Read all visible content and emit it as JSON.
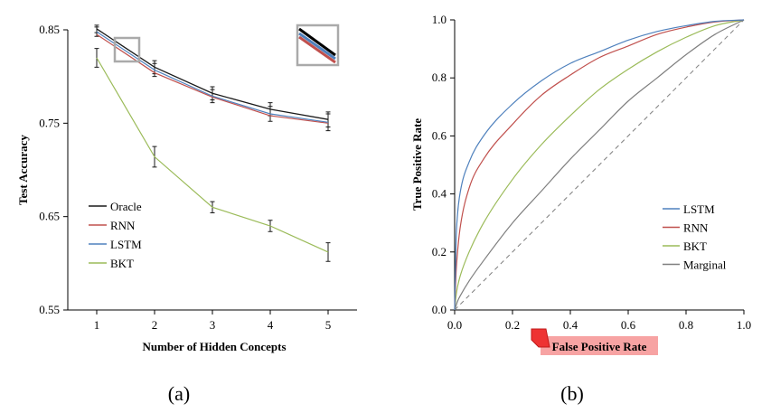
{
  "colors": {
    "oracle": "#1a1a1a",
    "rnn": "#c0504d",
    "lstm": "#4f81bd",
    "bkt": "#9bbb59",
    "marginal": "#7f7f7f",
    "chance": "#808080",
    "annotation": "#f08080"
  },
  "chart_data": [
    {
      "type": "line",
      "panel_label": "(a)",
      "xlabel": "Number of Hidden Concepts",
      "ylabel": "Test Accuracy",
      "x": [
        1,
        2,
        3,
        4,
        5
      ],
      "xticks": [
        "1",
        "2",
        "3",
        "4",
        "5"
      ],
      "xlim": [
        0.5,
        5.5
      ],
      "ylim": [
        0.55,
        0.85
      ],
      "yticks": [
        "0.55",
        "0.65",
        "0.75",
        "0.85"
      ],
      "legend_position": "bottom-left",
      "inset": "zoom box near x=1.5",
      "series": [
        {
          "name": "Oracle",
          "key": "oracle",
          "values": [
            0.851,
            0.81,
            0.782,
            0.765,
            0.754
          ],
          "err": [
            0.004,
            0.007,
            0.007,
            0.007,
            0.008
          ]
        },
        {
          "name": "RNN",
          "key": "rnn",
          "values": [
            0.845,
            0.804,
            0.778,
            0.758,
            0.75
          ],
          "err": [
            0,
            0,
            0,
            0,
            0
          ]
        },
        {
          "name": "LSTM",
          "key": "lstm",
          "values": [
            0.848,
            0.807,
            0.779,
            0.76,
            0.751
          ],
          "err": [
            0.005,
            0.007,
            0.007,
            0.008,
            0.009
          ]
        },
        {
          "name": "BKT",
          "key": "bkt",
          "values": [
            0.82,
            0.714,
            0.66,
            0.64,
            0.612
          ],
          "err": [
            0.01,
            0.011,
            0.006,
            0.006,
            0.01
          ]
        }
      ]
    },
    {
      "type": "line",
      "panel_label": "(b)",
      "xlabel": "False Positive Rate",
      "ylabel": "True Positive Rate",
      "xlim": [
        0,
        1
      ],
      "ylim": [
        0,
        1
      ],
      "xticks": [
        "0.0",
        "0.2",
        "0.4",
        "0.6",
        "0.8",
        "1.0"
      ],
      "yticks": [
        "0.0",
        "0.2",
        "0.4",
        "0.6",
        "0.8",
        "1.0"
      ],
      "legend_position": "bottom-right",
      "x": [
        0,
        0.005,
        0.01,
        0.02,
        0.05,
        0.1,
        0.2,
        0.3,
        0.4,
        0.5,
        0.6,
        0.7,
        0.8,
        0.9,
        1.0
      ],
      "series": [
        {
          "name": "LSTM",
          "key": "lstm",
          "values": [
            0,
            0.24,
            0.33,
            0.41,
            0.51,
            0.6,
            0.71,
            0.79,
            0.85,
            0.89,
            0.93,
            0.96,
            0.98,
            0.995,
            1.0
          ]
        },
        {
          "name": "RNN",
          "key": "rnn",
          "values": [
            0,
            0.13,
            0.2,
            0.29,
            0.42,
            0.52,
            0.64,
            0.74,
            0.81,
            0.87,
            0.91,
            0.95,
            0.975,
            0.993,
            1.0
          ]
        },
        {
          "name": "BKT",
          "key": "bkt",
          "values": [
            0,
            0.05,
            0.08,
            0.12,
            0.2,
            0.3,
            0.45,
            0.57,
            0.67,
            0.76,
            0.83,
            0.89,
            0.94,
            0.98,
            1.0
          ]
        },
        {
          "name": "Marginal",
          "key": "marginal",
          "values": [
            0,
            0.015,
            0.03,
            0.05,
            0.1,
            0.17,
            0.3,
            0.41,
            0.52,
            0.62,
            0.72,
            0.8,
            0.88,
            0.95,
            1.0
          ]
        }
      ],
      "reference_line": "diagonal"
    }
  ]
}
